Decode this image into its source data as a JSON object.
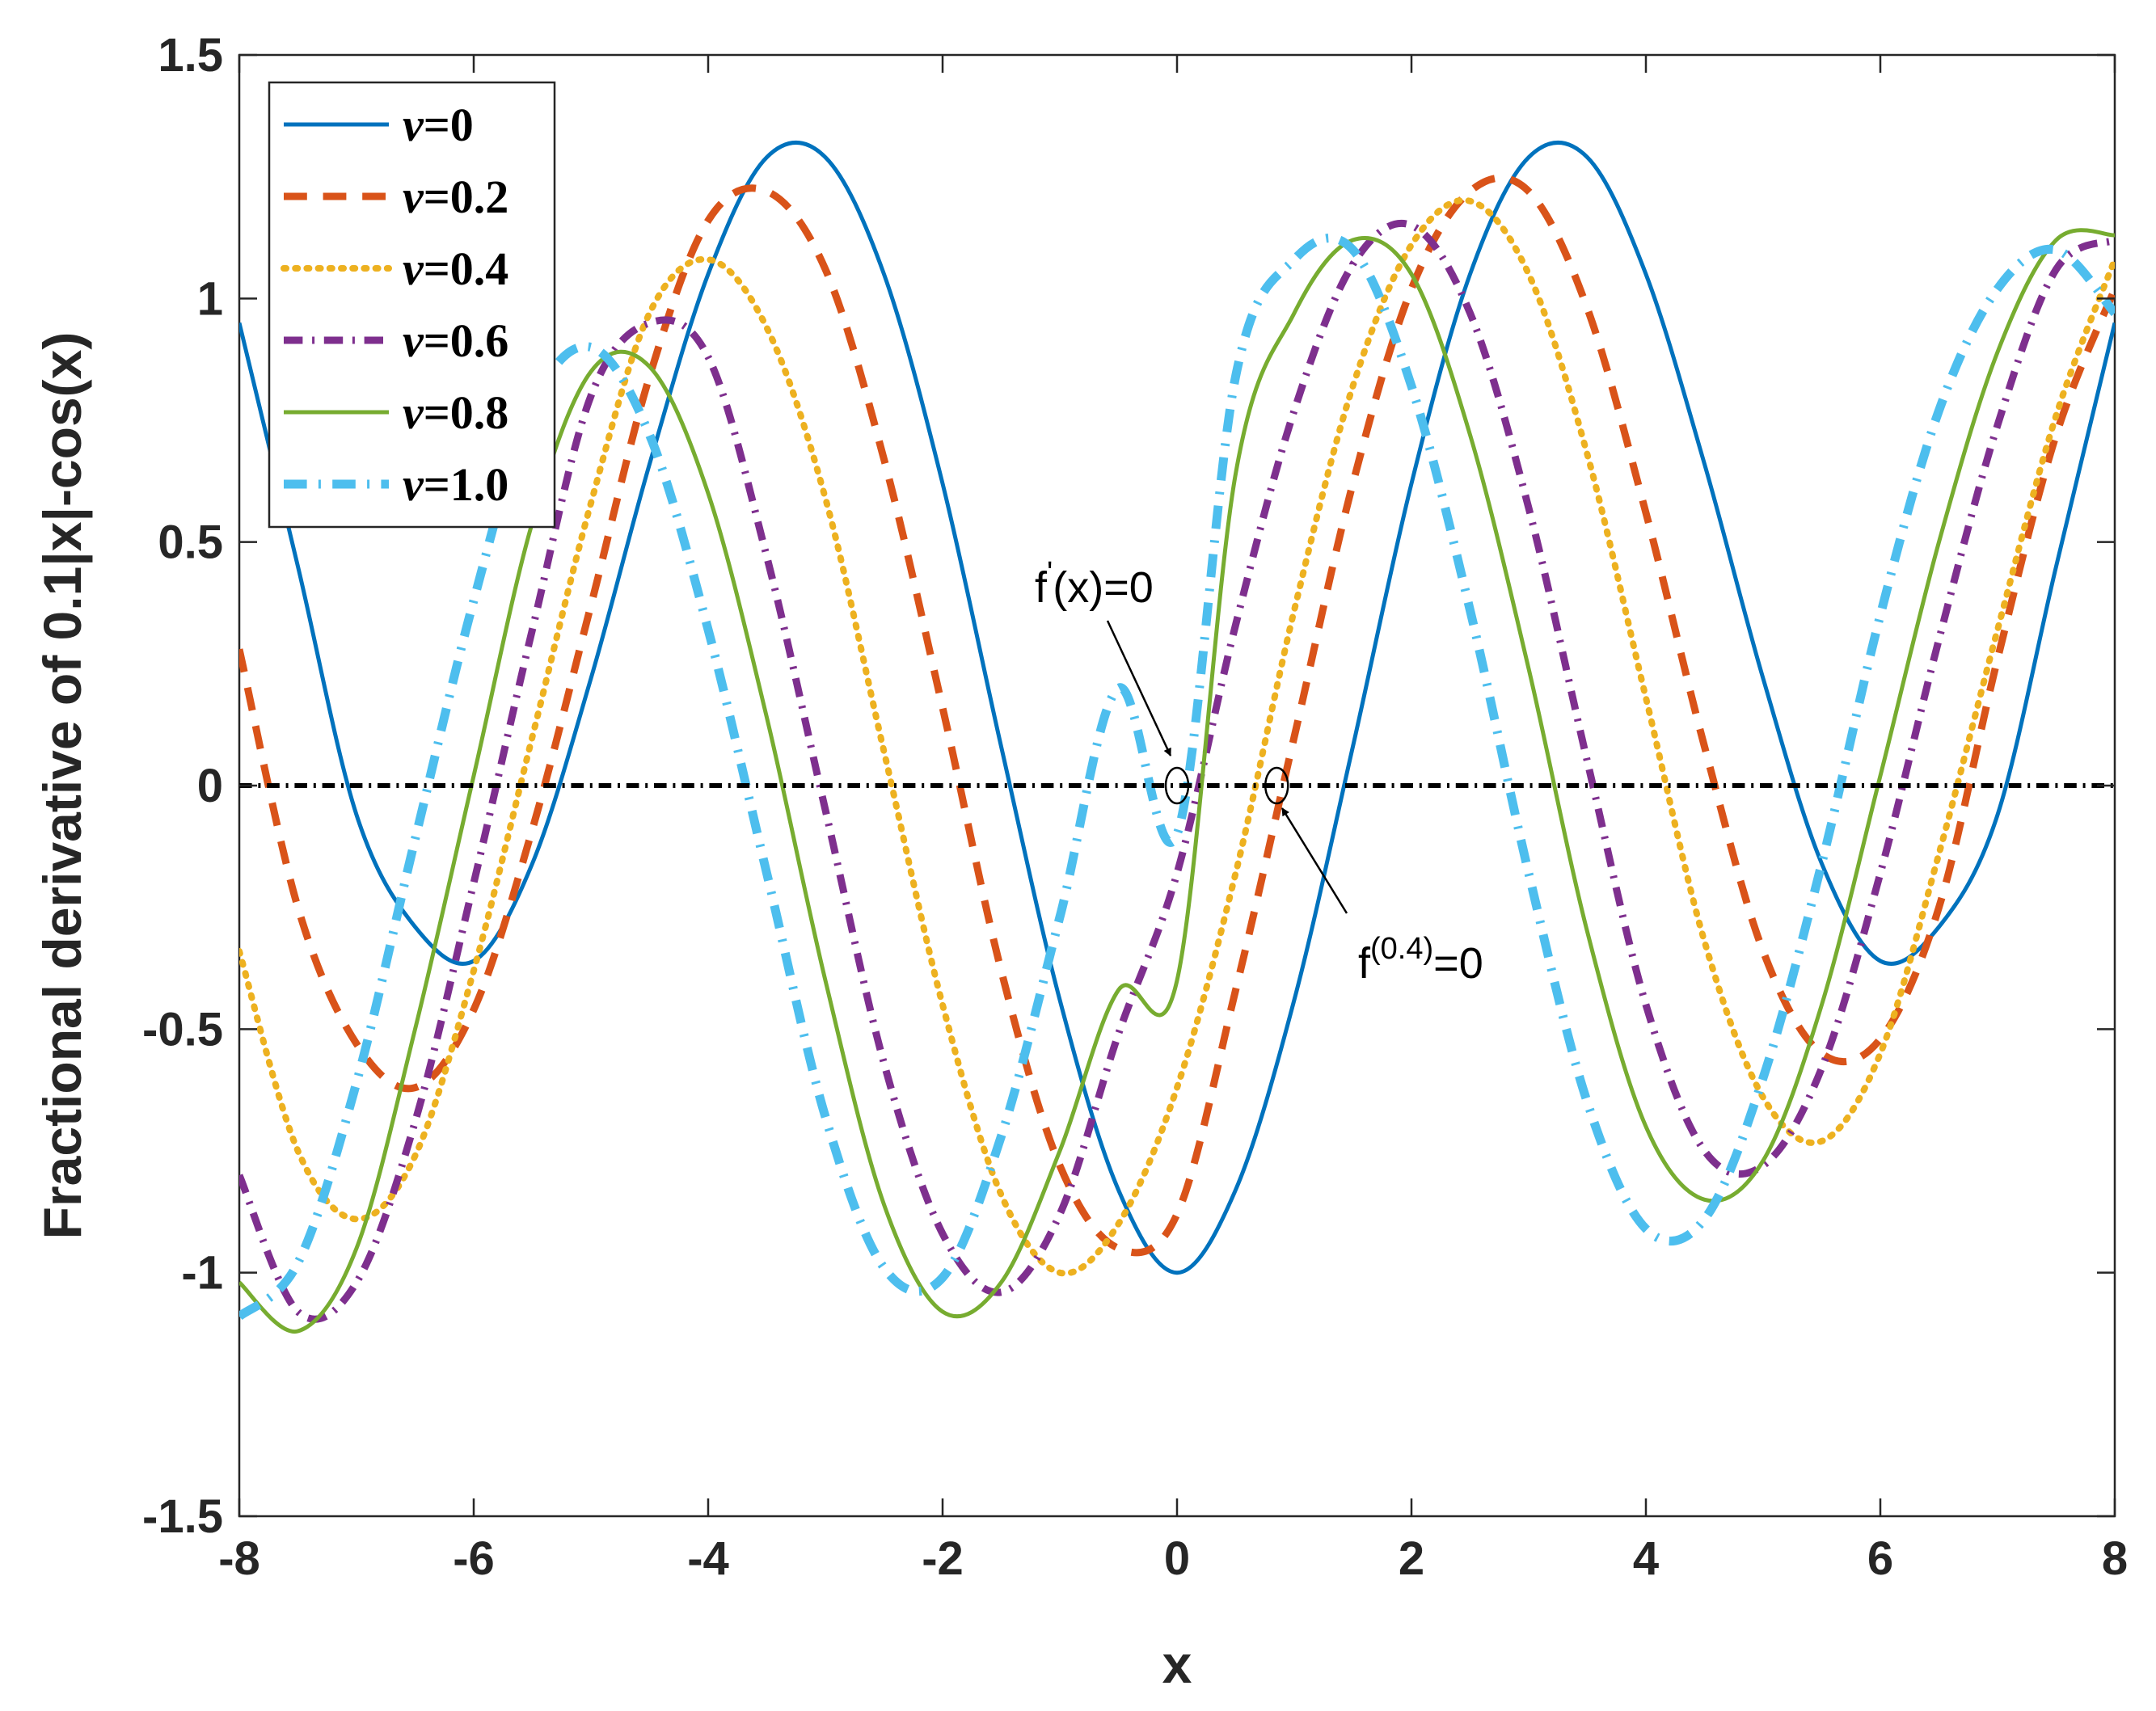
{
  "chart_data": {
    "type": "line",
    "title": "",
    "xlabel": "x",
    "ylabel": "Fractional derivative of 0.1|x|-cos(x)",
    "xlim": [
      -8,
      8
    ],
    "ylim": [
      -1.5,
      1.5
    ],
    "xticks": [
      "-8",
      "-6",
      "-4",
      "-2",
      "0",
      "2",
      "4",
      "6",
      "8"
    ],
    "yticks": [
      "-1.5",
      "-1",
      "-0.5",
      "0",
      "0.5",
      "1",
      "1.5"
    ],
    "grid": false,
    "legend_position": "top-left",
    "x_samples": [
      -8,
      -7.5,
      -7,
      -6.5,
      -6,
      -5.5,
      -5,
      -4.5,
      -4,
      -3.5,
      -3,
      -2.5,
      -2,
      -1.5,
      -1,
      -0.5,
      0,
      0.5,
      1,
      1.5,
      2,
      2.5,
      3,
      3.5,
      4,
      4.5,
      5,
      5.5,
      6,
      6.5,
      7,
      7.5,
      8
    ],
    "series": [
      {
        "name": "0",
        "color": "#0072BD",
        "dash": "solid",
        "width": 5,
        "values": [
          0.95,
          0.45,
          -0.06,
          -0.29,
          -0.36,
          -0.16,
          0.22,
          0.66,
          1.05,
          1.29,
          1.29,
          1.05,
          0.62,
          0.08,
          -0.44,
          -0.83,
          -1.0,
          -0.83,
          -0.44,
          0.08,
          0.62,
          1.05,
          1.29,
          1.29,
          1.05,
          0.66,
          0.22,
          -0.16,
          -0.36,
          -0.29,
          -0.06,
          0.45,
          0.95
        ]
      },
      {
        "name": "0.2",
        "color": "#D95319",
        "dash": "dash",
        "width": 9,
        "values": [
          0.28,
          -0.25,
          -0.53,
          -0.62,
          -0.46,
          -0.09,
          0.37,
          0.84,
          1.16,
          1.22,
          1.06,
          0.67,
          0.16,
          -0.38,
          -0.78,
          -0.95,
          -0.88,
          -0.42,
          0.1,
          0.62,
          1.02,
          1.22,
          1.22,
          0.98,
          0.56,
          0.08,
          -0.34,
          -0.55,
          -0.52,
          -0.25,
          0.26,
          0.72,
          1.02
        ]
      },
      {
        "name": "0.4",
        "color": "#EDB120",
        "dash": "dot",
        "width": 8,
        "values": [
          -0.34,
          -0.75,
          -0.89,
          -0.76,
          -0.38,
          0.1,
          0.58,
          0.97,
          1.08,
          0.94,
          0.59,
          0.07,
          -0.45,
          -0.84,
          -1.0,
          -0.9,
          -0.62,
          -0.18,
          0.36,
          0.82,
          1.11,
          1.2,
          1.05,
          0.68,
          0.18,
          -0.32,
          -0.64,
          -0.73,
          -0.55,
          -0.14,
          0.32,
          0.76,
          1.08
        ]
      },
      {
        "name": "0.6",
        "color": "#7E2F8E",
        "dash": "dashdot",
        "width": 9,
        "values": [
          -0.8,
          -1.08,
          -1.02,
          -0.69,
          -0.2,
          0.32,
          0.8,
          0.95,
          0.88,
          0.47,
          -0.05,
          -0.57,
          -0.92,
          -1.04,
          -0.88,
          -0.51,
          -0.18,
          0.33,
          0.77,
          1.07,
          1.15,
          0.97,
          0.57,
          0.05,
          -0.45,
          -0.75,
          -0.78,
          -0.58,
          -0.18,
          0.3,
          0.74,
          1.06,
          1.12
        ]
      },
      {
        "name": "0.8",
        "color": "#77AC30",
        "dash": "solid",
        "width": 5,
        "values": [
          -1.02,
          -1.12,
          -0.95,
          -0.5,
          0.02,
          0.54,
          0.85,
          0.86,
          0.6,
          0.14,
          -0.4,
          -0.86,
          -1.08,
          -1.02,
          -0.75,
          -0.42,
          -0.4,
          0.64,
          0.97,
          1.12,
          1.05,
          0.72,
          0.24,
          -0.3,
          -0.7,
          -0.85,
          -0.77,
          -0.45,
          0.02,
          0.5,
          0.89,
          1.12,
          1.13
        ]
      },
      {
        "name": "1.0",
        "color": "#4DBEEE",
        "dash": "dashdot",
        "width": 11,
        "values": [
          -1.09,
          -0.98,
          -0.61,
          -0.11,
          0.38,
          0.78,
          0.9,
          0.72,
          0.32,
          -0.18,
          -0.68,
          -0.99,
          -1.01,
          -0.72,
          -0.27,
          0.2,
          -0.1,
          0.84,
          1.08,
          1.1,
          0.82,
          0.36,
          -0.18,
          -0.65,
          -0.91,
          -0.89,
          -0.6,
          -0.16,
          0.35,
          0.77,
          1.02,
          1.1,
          0.97
        ]
      }
    ],
    "reference_line": {
      "y": 0,
      "color": "#000000",
      "dash": "dashdot"
    },
    "annotations": [
      {
        "text": "f",
        "sup": "'",
        "suffix": "(x)=0",
        "point": [
          0.0,
          0.0
        ],
        "marker": "ellipse"
      },
      {
        "text": "f",
        "sup": "(0.4)",
        "suffix": "=0",
        "point": [
          0.85,
          0.0
        ],
        "marker": "ellipse"
      }
    ]
  }
}
